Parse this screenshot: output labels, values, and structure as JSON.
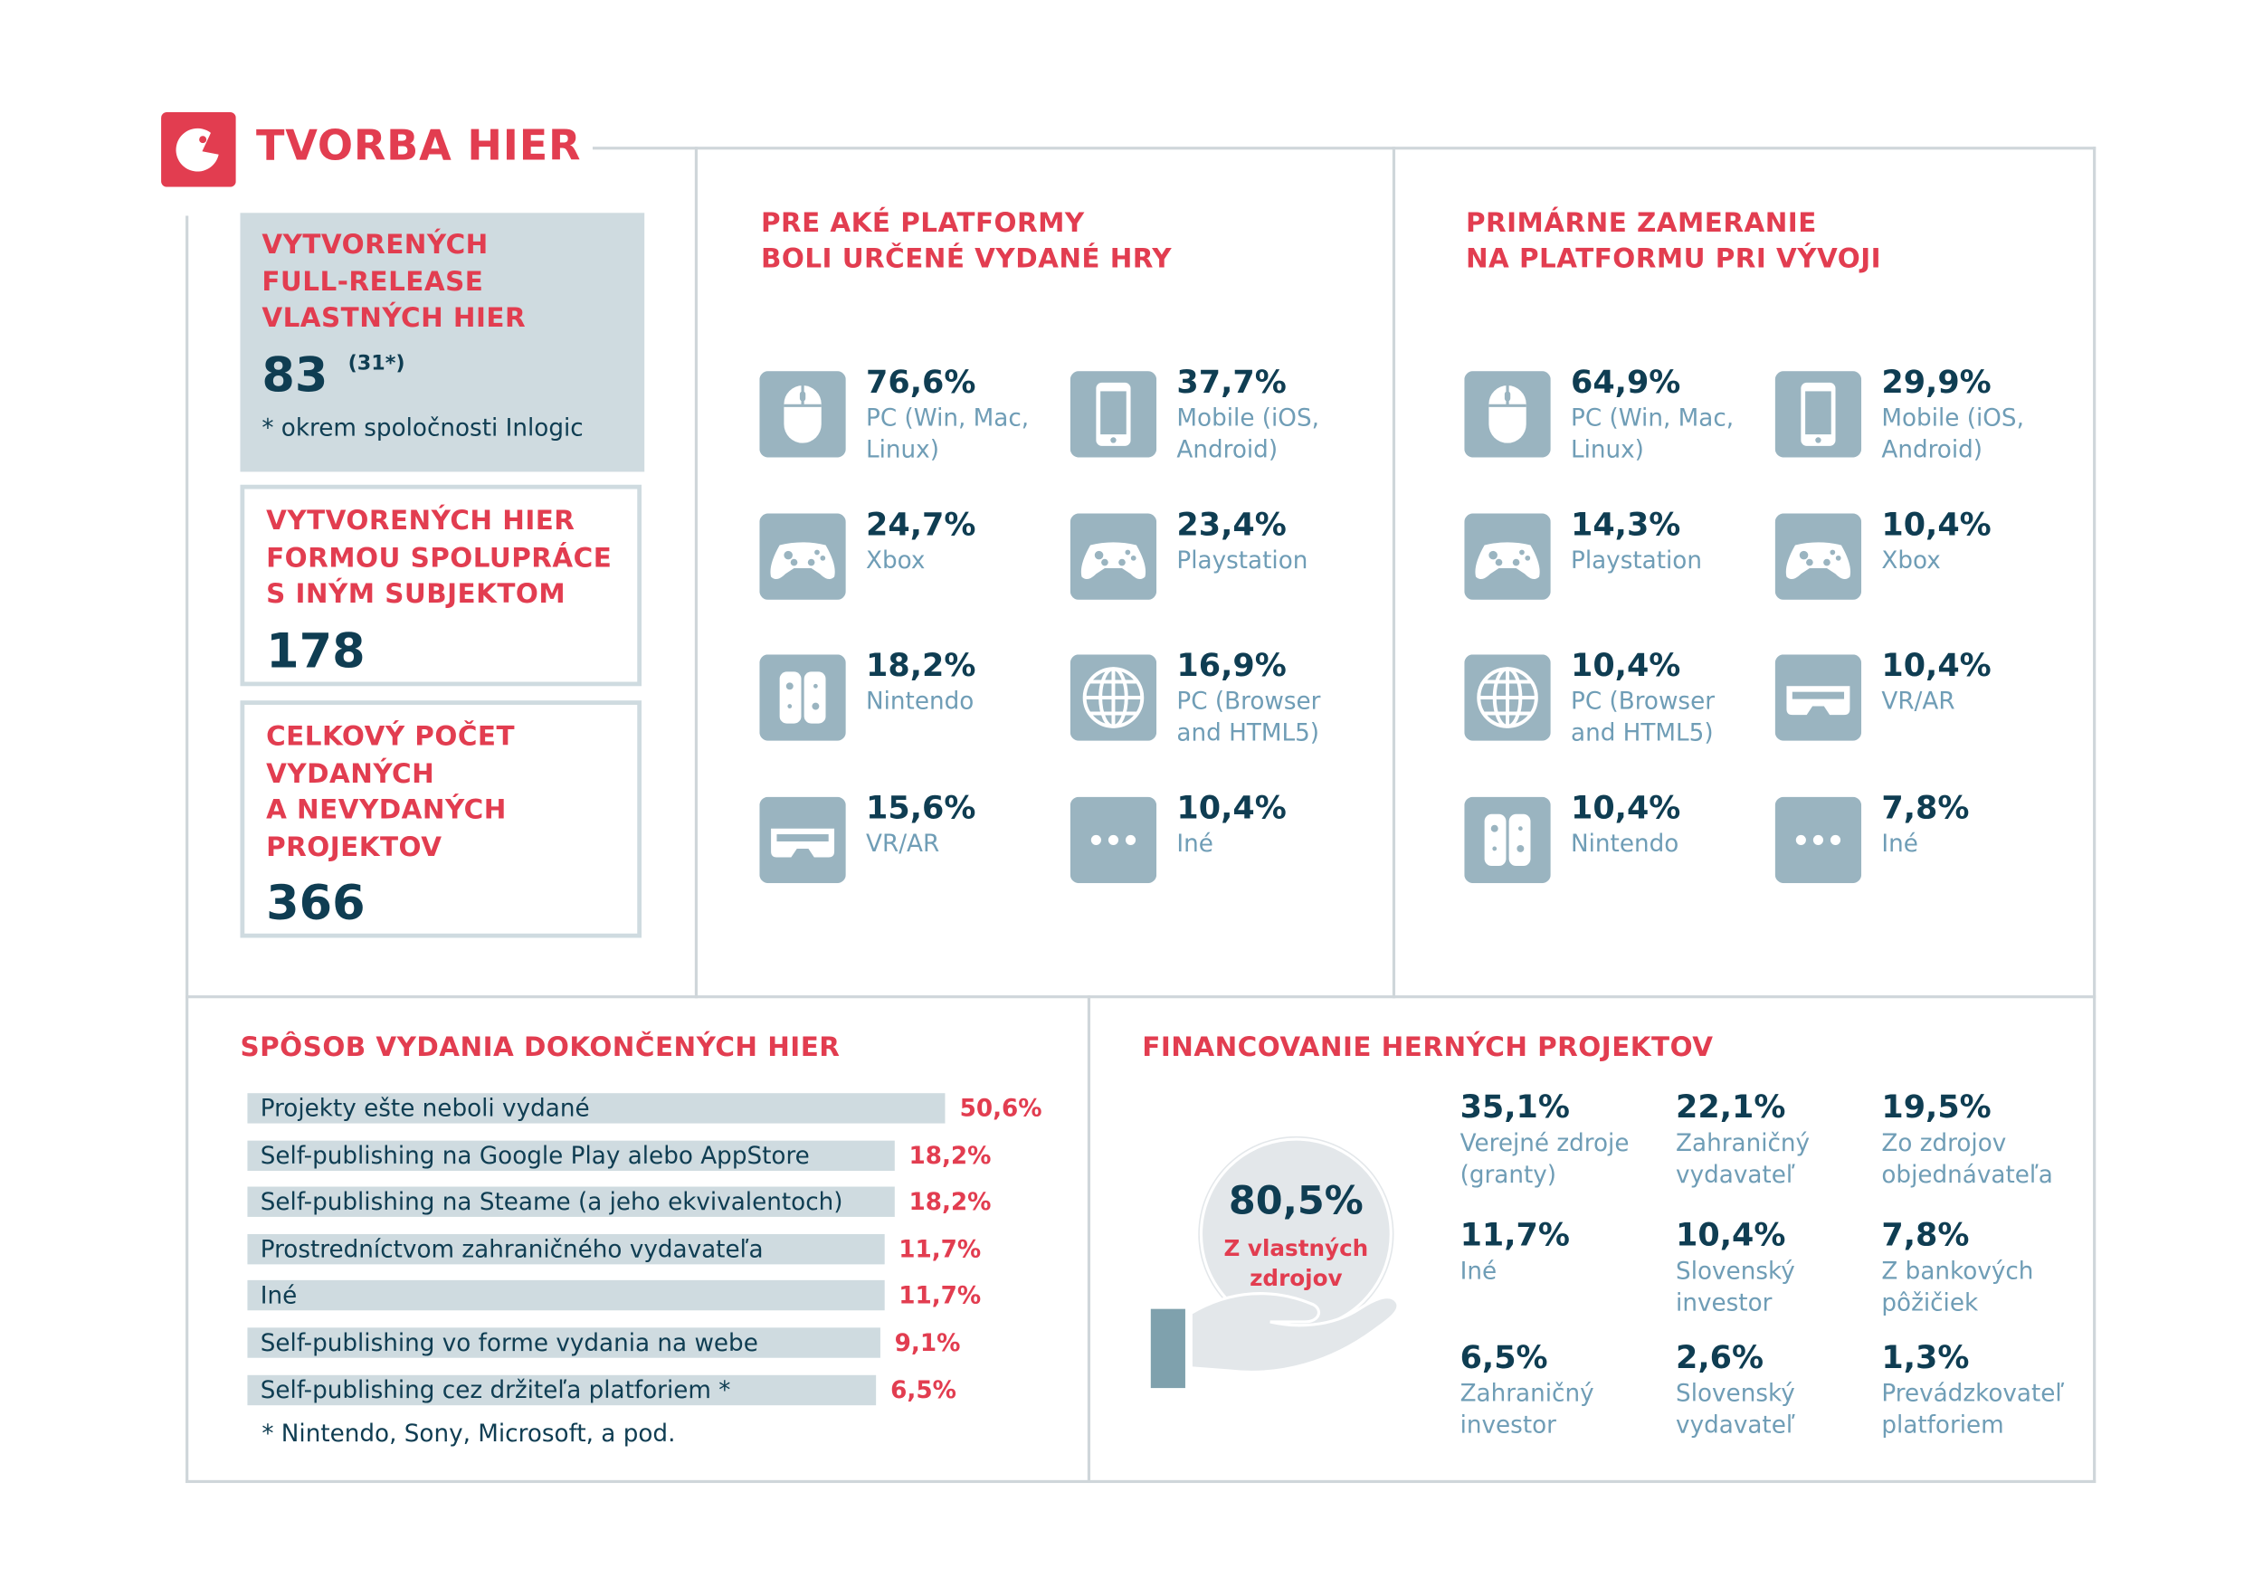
{
  "header": {
    "title": "TVORBA HIER"
  },
  "summary": [
    {
      "label_lines": [
        "VYTVORENÝCH",
        "FULL-RELEASE",
        "VLASTNÝCH HIER"
      ],
      "value": "83",
      "value_note": "(31*)",
      "footnote": "* okrem spoločnosti Inlogic"
    },
    {
      "label_lines": [
        "VYTVORENÝCH HIER",
        "FORMOU SPOLUPRÁCE",
        "S INÝM SUBJEKTOM"
      ],
      "value": "178"
    },
    {
      "label_lines": [
        "CELKOVÝ POČET",
        "VYDANÝCH",
        "A NEVYDANÝCH",
        "PROJEKTOV"
      ],
      "value": "366"
    }
  ],
  "release_platforms": {
    "title_lines": [
      "PRE AKÉ PLATFORMY",
      "BOLI URČENÉ VYDANÉ HRY"
    ],
    "items": [
      {
        "value": "76,6%",
        "label": "PC (Win, Mac, Linux)"
      },
      {
        "value": "37,7%",
        "label": "Mobile (iOS, Android)"
      },
      {
        "value": "24,7%",
        "label": "Xbox"
      },
      {
        "value": "23,4%",
        "label": "Playstation"
      },
      {
        "value": "18,2%",
        "label": "Nintendo"
      },
      {
        "value": "16,9%",
        "label": "PC (Browser and HTML5)"
      },
      {
        "value": "15,6%",
        "label": "VR/AR"
      },
      {
        "value": "10,4%",
        "label": "Iné"
      }
    ]
  },
  "primary_focus": {
    "title_lines": [
      "PRIMÁRNE ZAMERANIE",
      "NA PLATFORMU PRI VÝVOJI"
    ],
    "items": [
      {
        "value": "64,9%",
        "label": "PC (Win, Mac, Linux)"
      },
      {
        "value": "29,9%",
        "label": "Mobile (iOS, Android)"
      },
      {
        "value": "14,3%",
        "label": "Playstation"
      },
      {
        "value": "10,4%",
        "label": "Xbox"
      },
      {
        "value": "10,4%",
        "label": "PC (Browser and HTML5)"
      },
      {
        "value": "10,4%",
        "label": "VR/AR"
      },
      {
        "value": "10,4%",
        "label": "Nintendo"
      },
      {
        "value": "7,8%",
        "label": "Iné"
      }
    ]
  },
  "publishing": {
    "title": "SPÔSOB VYDANIA DOKONČENÝCH HIER",
    "items": [
      {
        "label": "Projekty ešte neboli vydané",
        "value": 50.6,
        "value_label": "50,6%"
      },
      {
        "label": "Self-publishing na Google Play alebo AppStore",
        "value": 18.2,
        "value_label": "18,2%"
      },
      {
        "label": "Self-publishing na Steame (a jeho ekvivalentoch)",
        "value": 18.2,
        "value_label": "18,2%"
      },
      {
        "label": "Prostredníctvom zahraničného vydavateľa",
        "value": 11.7,
        "value_label": "11,7%"
      },
      {
        "label": "Iné",
        "value": 11.7,
        "value_label": "11,7%"
      },
      {
        "label": "Self-publishing vo forme vydania na webe",
        "value": 9.1,
        "value_label": "9,1%"
      },
      {
        "label": "Self-publishing cez držiteľa platforiem *",
        "value": 6.5,
        "value_label": "6,5%"
      }
    ],
    "footnote": "* Nintendo, Sony, Microsoft, a pod."
  },
  "financing": {
    "title": "FINANCOVANIE HERNÝCH PROJEKTOV",
    "main_value": "80,5%",
    "main_label_lines": [
      "Z vlastných",
      "zdrojov"
    ],
    "items": [
      {
        "value": "35,1%",
        "label": "Verejné zdroje (granty)"
      },
      {
        "value": "22,1%",
        "label": "Zahraničný vydavateľ"
      },
      {
        "value": "19,5%",
        "label": "Zo zdrojov objednávateľa"
      },
      {
        "value": "11,7%",
        "label": "Iné"
      },
      {
        "value": "10,4%",
        "label": "Slovenský investor"
      },
      {
        "value": "7,8%",
        "label": "Z bankových pôžičiek"
      },
      {
        "value": "6,5%",
        "label": "Zahraničný investor"
      },
      {
        "value": "2,6%",
        "label": "Slovenský vydavateľ"
      },
      {
        "value": "1,3%",
        "label": "Prevádzkovateľ platforiem"
      }
    ]
  }
}
